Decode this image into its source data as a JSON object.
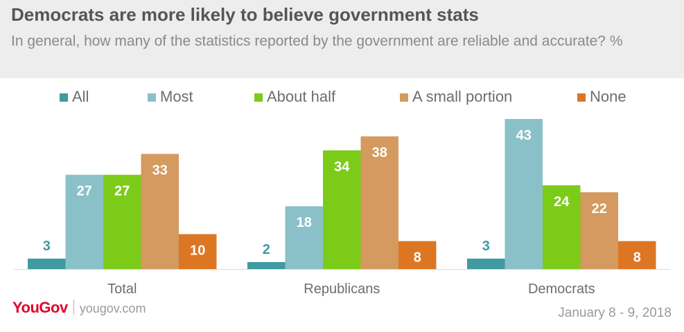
{
  "header": {
    "title": "Democrats are more likely to believe government stats",
    "subtitle": "In general, how many of the statistics reported by the government are reliable and accurate? %"
  },
  "footer": {
    "brand": "YouGov",
    "url": "yougov.com",
    "date": "January 8 - 9, 2018"
  },
  "chart_data": {
    "type": "bar",
    "categories": [
      "Total",
      "Republicans",
      "Democrats"
    ],
    "series": [
      {
        "name": "All",
        "color": "#3f9aa3",
        "values": [
          3,
          2,
          3
        ]
      },
      {
        "name": "Most",
        "color": "#8ac1c8",
        "values": [
          27,
          18,
          43
        ]
      },
      {
        "name": "About half",
        "color": "#7ccb19",
        "values": [
          27,
          34,
          24
        ]
      },
      {
        "name": "A small portion",
        "color": "#d49a5f",
        "values": [
          33,
          38,
          22
        ]
      },
      {
        "name": "None",
        "color": "#dd7623",
        "values": [
          10,
          8,
          8
        ]
      }
    ],
    "ylim": [
      0,
      43
    ],
    "grid": false,
    "legend": "top",
    "data_labels": true
  }
}
